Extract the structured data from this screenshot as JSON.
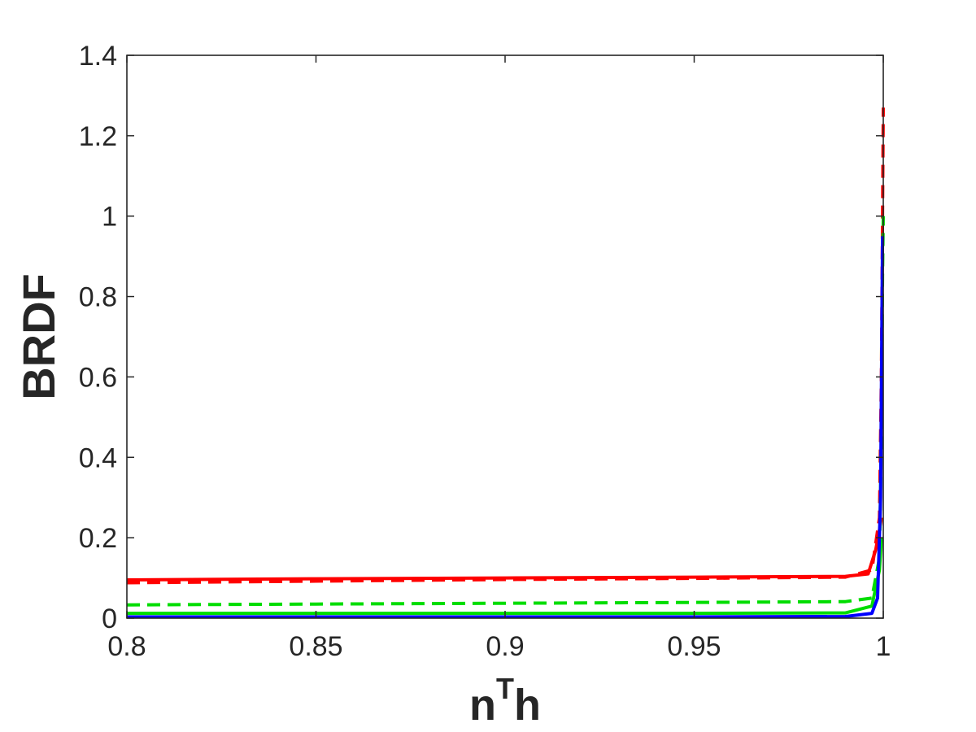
{
  "chart_data": {
    "type": "line",
    "title": "",
    "xlabel": {
      "base": "n",
      "sup": "T",
      "rest": "h"
    },
    "ylabel": "BRDF",
    "xlim": [
      0.8,
      1.0
    ],
    "ylim": [
      0,
      1.4
    ],
    "xticks": [
      0.8,
      0.85,
      0.9,
      0.95,
      1.0
    ],
    "xtick_labels": [
      "0.8",
      "0.85",
      "0.9",
      "0.95",
      "1"
    ],
    "yticks": [
      0,
      0.2,
      0.4,
      0.6,
      0.8,
      1.0,
      1.2,
      1.4
    ],
    "ytick_labels": [
      "0",
      "0.2",
      "0.4",
      "0.6",
      "0.8",
      "1",
      "1.2",
      "1.4"
    ],
    "grid": false,
    "legend": "none",
    "series": [
      {
        "color": "#ff0000",
        "dash": "solid",
        "x": [
          0.8,
          0.85,
          0.9,
          0.95,
          0.99,
          0.996,
          0.998,
          0.999,
          0.9995
        ],
        "y": [
          0.095,
          0.098,
          0.1,
          0.102,
          0.104,
          0.11,
          0.17,
          0.22,
          0.25
        ]
      },
      {
        "color": "#ff0000",
        "dash": "dashed",
        "x": [
          0.8,
          0.85,
          0.9,
          0.95,
          0.99,
          0.997,
          0.999,
          0.9995,
          0.9998,
          1.0
        ],
        "y": [
          0.088,
          0.092,
          0.096,
          0.099,
          0.102,
          0.12,
          0.25,
          0.6,
          1.0,
          1.27
        ]
      },
      {
        "color": "#00dd00",
        "dash": "dashed",
        "x": [
          0.8,
          0.85,
          0.9,
          0.95,
          0.99,
          0.997,
          0.999,
          0.9995,
          0.9998,
          1.0
        ],
        "y": [
          0.033,
          0.035,
          0.037,
          0.039,
          0.041,
          0.05,
          0.15,
          0.45,
          0.85,
          1.0
        ]
      },
      {
        "color": "#00dd00",
        "dash": "solid",
        "x": [
          0.8,
          0.85,
          0.9,
          0.95,
          0.99,
          0.997,
          0.999,
          0.9995
        ],
        "y": [
          0.012,
          0.012,
          0.012,
          0.012,
          0.013,
          0.03,
          0.12,
          0.2
        ]
      },
      {
        "color": "#0000ff",
        "dash": "solid",
        "x": [
          0.8,
          0.85,
          0.9,
          0.95,
          0.99,
          0.997,
          0.9985,
          0.9993,
          0.9998
        ],
        "y": [
          0.003,
          0.003,
          0.003,
          0.003,
          0.004,
          0.012,
          0.05,
          0.3,
          0.95
        ]
      }
    ]
  }
}
